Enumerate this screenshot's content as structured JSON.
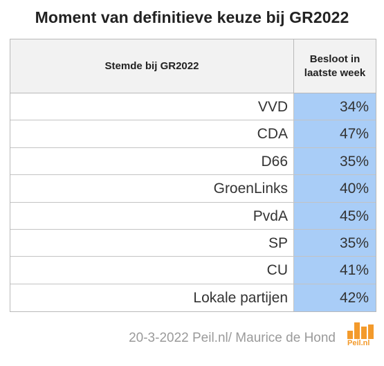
{
  "title": "Moment van definitieve keuze bij GR2022",
  "chart_data": {
    "type": "table",
    "title": "Moment van definitieve keuze bij GR2022",
    "columns": [
      "Stemde bij GR2022",
      "Besloot in laatste week"
    ],
    "rows": [
      {
        "party": "VVD",
        "value": "34%"
      },
      {
        "party": "CDA",
        "value": "47%"
      },
      {
        "party": "D66",
        "value": "35%"
      },
      {
        "party": "GroenLinks",
        "value": "40%"
      },
      {
        "party": "PvdA",
        "value": "45%"
      },
      {
        "party": "SP",
        "value": "35%"
      },
      {
        "party": "CU",
        "value": "41%"
      },
      {
        "party": "Lokale partijen",
        "value": "42%"
      }
    ]
  },
  "footer": "20-3-2022 Peil.nl/ Maurice de Hond",
  "logo": {
    "text": "Peil.nl",
    "icon": "bar-chart-logo-icon",
    "color": "#f39a2b"
  },
  "colors": {
    "value_cell": "#a9cdf7",
    "header_bg": "#f2f2f2"
  }
}
